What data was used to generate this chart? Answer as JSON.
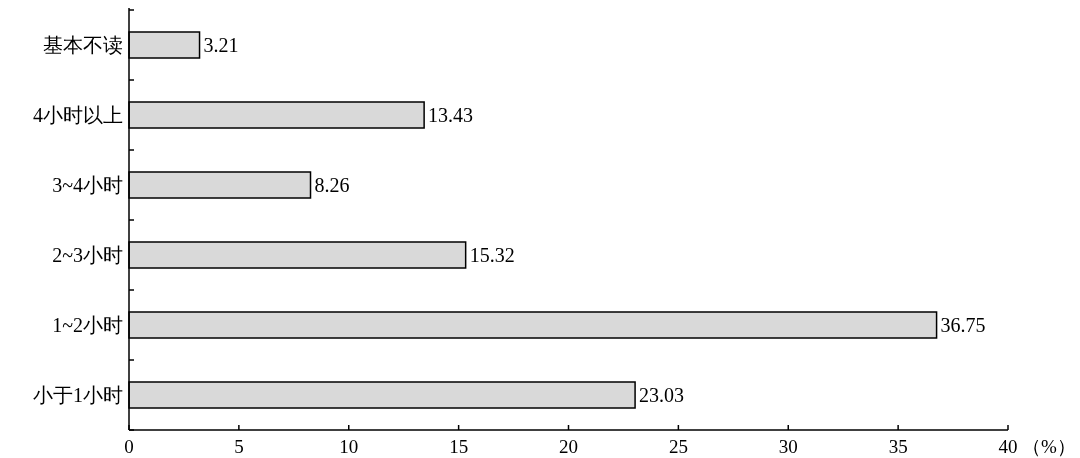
{
  "chart_data": {
    "type": "bar",
    "orientation": "horizontal",
    "categories": [
      "基本不读",
      "4小时以上",
      "3~4小时",
      "2~3小时",
      "1~2小时",
      "小于1小时"
    ],
    "values": [
      3.21,
      13.43,
      8.26,
      15.32,
      36.75,
      23.03
    ],
    "color": "#d9d9d9",
    "xlim": [
      0,
      40
    ],
    "xticks": [
      0,
      5,
      10,
      15,
      20,
      25,
      30,
      35,
      40
    ],
    "xlabel": "（%）",
    "data_labels": true
  }
}
